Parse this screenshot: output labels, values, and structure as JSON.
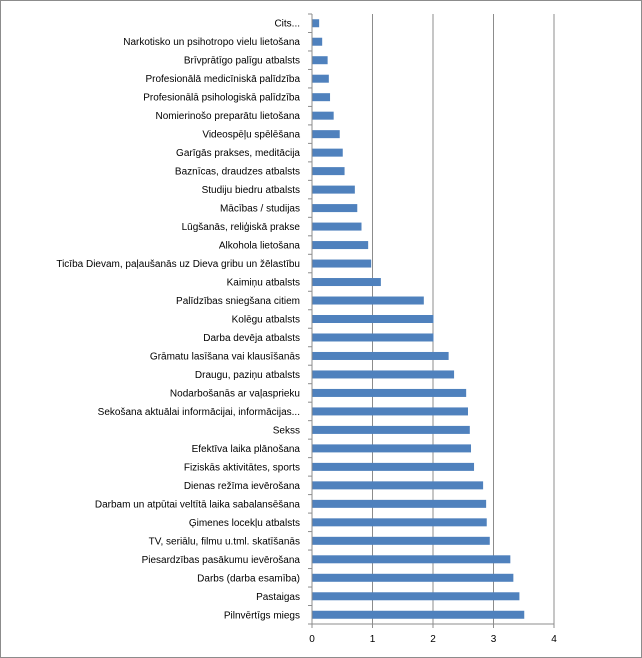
{
  "chart_data": {
    "type": "bar",
    "orientation": "horizontal",
    "title": "",
    "xlabel": "",
    "ylabel": "",
    "xlim": [
      0,
      4
    ],
    "x_ticks": [
      "0",
      "1",
      "2",
      "3",
      "4"
    ],
    "grid": "vertical",
    "legend": "none",
    "bar_color": "#4f81bd",
    "categories": [
      "Cits...",
      "Narkotisko un psihotropo vielu lietošana",
      "Brīvprātīgo palīgu atbalsts",
      "Profesionālā medicīniskā palīdzība",
      "Profesionālā psihologiskā palīdzība",
      "Nomierinošo preparātu lietošana",
      "Videospēļu spēlēšana",
      "Garīgās prakses, meditācija",
      "Baznīcas, draudzes atbalsts",
      "Studiju biedru atbalsts",
      "Mācības / studijas",
      "Lūgšanās, reliģiskā prakse",
      "Alkohola lietošana",
      "Ticība Dievam, paļaušanās uz Dieva gribu un žēlastību",
      "Kaimiņu atbalsts",
      "Palīdzības sniegšana citiem",
      "Kolēgu  atbalsts",
      "Darba devēja atbalsts",
      "Grāmatu lasīšana vai klausīšanās",
      "Draugu, paziņu atbalsts",
      "Nodarbošanās ar vaļasprieku",
      "Sekošana aktuālai informācijai, informācijas...",
      "Sekss",
      "Efektīva laika plānošana",
      "Fiziskās aktivitātes, sports",
      "Dienas režīma ievērošana",
      "Darbam un atpūtai veltītā laika sabalansēšana",
      "Ģimenes locekļu atbalsts",
      "TV, seriālu, filmu u.tml. skatīšanās",
      "Piesardzības pasākumu ievērošana",
      "Darbs (darba esamība)",
      "Pastaigas",
      "Pilnvērtīgs miegs"
    ],
    "values": [
      0.11,
      0.16,
      0.25,
      0.27,
      0.29,
      0.35,
      0.45,
      0.5,
      0.53,
      0.7,
      0.74,
      0.81,
      0.92,
      0.97,
      1.13,
      1.84,
      2.0,
      2.0,
      2.25,
      2.34,
      2.54,
      2.57,
      2.6,
      2.62,
      2.67,
      2.82,
      2.87,
      2.88,
      2.93,
      3.27,
      3.32,
      3.42,
      3.5
    ]
  }
}
